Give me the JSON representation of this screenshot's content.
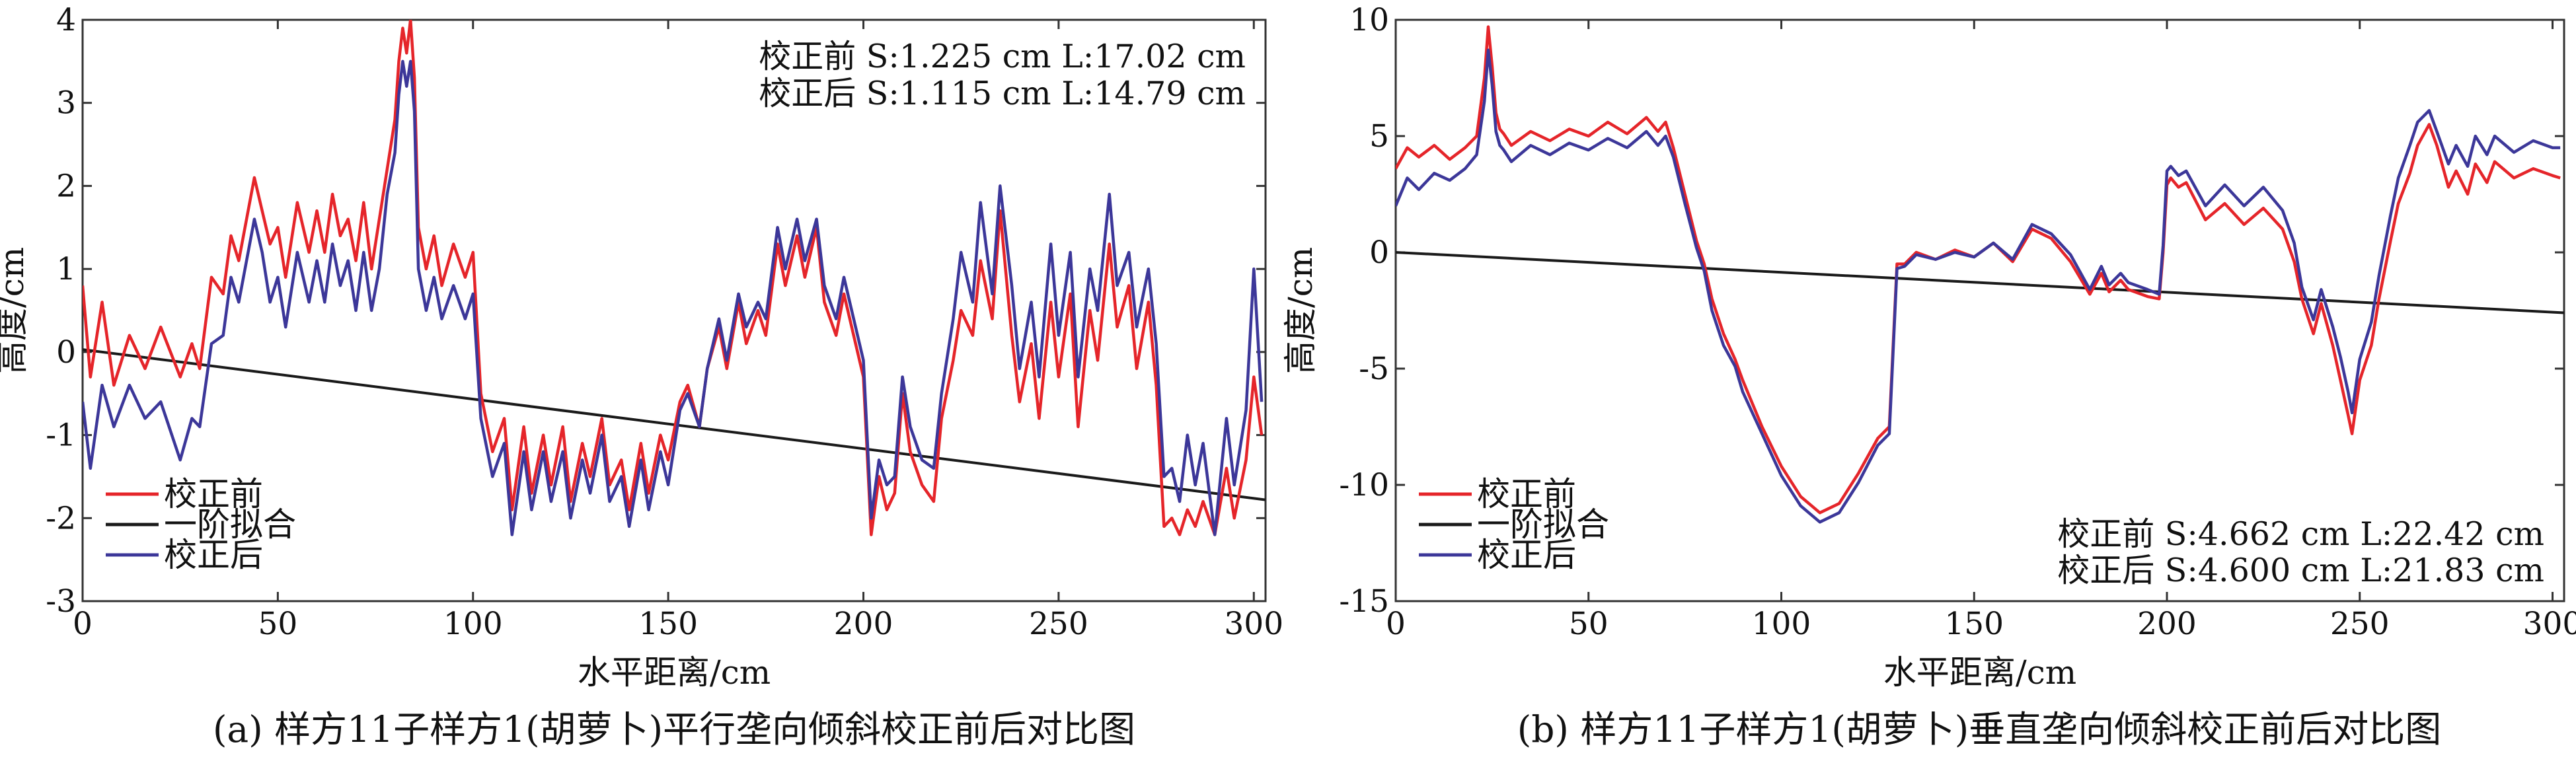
{
  "figure": {
    "colors": {
      "before": "#e5252a",
      "after": "#3c3799",
      "fit": "#1a1a1a",
      "axis": "#333333"
    }
  },
  "chart_data": [
    {
      "type": "line",
      "caption": "(a) 样方11子样方1(胡萝卜)平行垄向倾斜校正前后对比图",
      "xlabel": "水平距离/cm",
      "ylabel": "高度/cm",
      "xlim": [
        0,
        303
      ],
      "ylim": [
        -3,
        4
      ],
      "xticks": [
        0,
        50,
        100,
        150,
        200,
        250,
        300
      ],
      "yticks": [
        -3,
        -2,
        -1,
        0,
        1,
        2,
        3,
        4
      ],
      "legend": {
        "position": "bottom-left",
        "entries": [
          "校正前",
          "一阶拟合",
          "校正后"
        ]
      },
      "annotations": {
        "position": "top-right",
        "line1": "校正前  S:1.225 cm  L:17.02 cm",
        "line2": "校正后  S:1.115 cm  L:14.79 cm"
      },
      "series": [
        {
          "name": "校正前",
          "x": [
            0,
            2,
            5,
            8,
            12,
            16,
            20,
            25,
            28,
            30,
            33,
            36,
            38,
            40,
            42,
            44,
            46,
            48,
            50,
            52,
            55,
            58,
            60,
            62,
            64,
            66,
            68,
            70,
            72,
            74,
            76,
            78,
            80,
            81,
            82,
            83,
            84,
            85,
            86,
            88,
            90,
            92,
            95,
            98,
            100,
            102,
            105,
            108,
            110,
            113,
            115,
            118,
            120,
            123,
            125,
            128,
            130,
            133,
            135,
            138,
            140,
            143,
            145,
            148,
            150,
            153,
            155,
            158,
            160,
            163,
            165,
            168,
            170,
            173,
            175,
            178,
            180,
            183,
            185,
            188,
            190,
            193,
            195,
            198,
            200,
            202,
            204,
            206,
            208,
            210,
            212,
            215,
            218,
            220,
            223,
            225,
            228,
            230,
            233,
            235,
            238,
            240,
            243,
            245,
            248,
            250,
            253,
            255,
            258,
            260,
            263,
            265,
            268,
            270,
            273,
            275,
            277,
            279,
            281,
            283,
            285,
            287,
            290,
            293,
            295,
            298,
            300,
            302
          ],
          "values": [
            0.8,
            -0.3,
            0.6,
            -0.4,
            0.2,
            -0.2,
            0.3,
            -0.3,
            0.1,
            -0.2,
            0.9,
            0.7,
            1.4,
            1.1,
            1.6,
            2.1,
            1.7,
            1.3,
            1.5,
            0.9,
            1.8,
            1.2,
            1.7,
            1.2,
            1.9,
            1.4,
            1.6,
            1.1,
            1.8,
            1.0,
            1.6,
            2.2,
            2.8,
            3.5,
            3.9,
            3.6,
            4.0,
            3.3,
            1.5,
            1.0,
            1.4,
            0.8,
            1.3,
            0.9,
            1.2,
            -0.5,
            -1.2,
            -0.8,
            -1.9,
            -0.9,
            -1.7,
            -1.0,
            -1.6,
            -0.9,
            -1.8,
            -1.1,
            -1.5,
            -0.8,
            -1.6,
            -1.3,
            -1.9,
            -1.1,
            -1.7,
            -1.0,
            -1.3,
            -0.6,
            -0.4,
            -0.9,
            -0.2,
            0.3,
            -0.2,
            0.6,
            0.1,
            0.5,
            0.2,
            1.3,
            0.8,
            1.4,
            0.9,
            1.5,
            0.6,
            0.2,
            0.7,
            0.1,
            -0.3,
            -2.2,
            -1.5,
            -1.9,
            -1.7,
            -0.5,
            -1.2,
            -1.6,
            -1.8,
            -0.8,
            -0.1,
            0.5,
            0.2,
            1.1,
            0.4,
            1.7,
            0.2,
            -0.6,
            0.1,
            -0.8,
            0.6,
            -0.3,
            0.7,
            -0.9,
            0.5,
            -0.1,
            1.3,
            0.3,
            0.8,
            -0.2,
            0.6,
            -0.4,
            -2.1,
            -2.0,
            -2.2,
            -1.9,
            -2.1,
            -1.8,
            -2.2,
            -1.4,
            -2.0,
            -1.3,
            -0.3,
            -1.0
          ]
        },
        {
          "name": "一阶拟合",
          "x": [
            0,
            303
          ],
          "values": [
            0.03,
            -1.78
          ]
        },
        {
          "name": "校正后",
          "x": [
            0,
            2,
            5,
            8,
            12,
            16,
            20,
            25,
            28,
            30,
            33,
            36,
            38,
            40,
            42,
            44,
            46,
            48,
            50,
            52,
            55,
            58,
            60,
            62,
            64,
            66,
            68,
            70,
            72,
            74,
            76,
            78,
            80,
            81,
            82,
            83,
            84,
            85,
            86,
            88,
            90,
            92,
            95,
            98,
            100,
            102,
            105,
            108,
            110,
            113,
            115,
            118,
            120,
            123,
            125,
            128,
            130,
            133,
            135,
            138,
            140,
            143,
            145,
            148,
            150,
            153,
            155,
            158,
            160,
            163,
            165,
            168,
            170,
            173,
            175,
            178,
            180,
            183,
            185,
            188,
            190,
            193,
            195,
            198,
            200,
            202,
            204,
            206,
            208,
            210,
            212,
            215,
            218,
            220,
            223,
            225,
            228,
            230,
            233,
            235,
            238,
            240,
            243,
            245,
            248,
            250,
            253,
            255,
            258,
            260,
            263,
            265,
            268,
            270,
            273,
            275,
            277,
            279,
            281,
            283,
            285,
            287,
            290,
            293,
            295,
            298,
            300,
            302
          ],
          "values": [
            -0.6,
            -1.4,
            -0.4,
            -0.9,
            -0.4,
            -0.8,
            -0.6,
            -1.3,
            -0.8,
            -0.9,
            0.1,
            0.2,
            0.9,
            0.6,
            1.1,
            1.6,
            1.2,
            0.6,
            0.9,
            0.3,
            1.2,
            0.6,
            1.1,
            0.6,
            1.3,
            0.8,
            1.1,
            0.5,
            1.2,
            0.5,
            1.0,
            1.9,
            2.4,
            3.1,
            3.5,
            3.2,
            3.5,
            2.9,
            1.0,
            0.5,
            0.9,
            0.4,
            0.8,
            0.4,
            0.7,
            -0.8,
            -1.5,
            -1.1,
            -2.2,
            -1.2,
            -1.9,
            -1.2,
            -1.8,
            -1.2,
            -2.0,
            -1.3,
            -1.7,
            -1.0,
            -1.8,
            -1.5,
            -2.1,
            -1.3,
            -1.9,
            -1.2,
            -1.6,
            -0.7,
            -0.5,
            -0.9,
            -0.2,
            0.4,
            -0.1,
            0.7,
            0.3,
            0.6,
            0.4,
            1.5,
            1.0,
            1.6,
            1.1,
            1.6,
            0.8,
            0.4,
            0.9,
            0.3,
            -0.1,
            -2.0,
            -1.3,
            -1.6,
            -1.5,
            -0.3,
            -0.9,
            -1.3,
            -1.4,
            -0.5,
            0.4,
            1.2,
            0.6,
            1.8,
            0.7,
            2.0,
            0.8,
            -0.2,
            0.6,
            -0.3,
            1.3,
            0.2,
            1.2,
            -0.3,
            1.0,
            0.5,
            1.9,
            0.8,
            1.2,
            0.3,
            1.0,
            0.1,
            -1.5,
            -1.4,
            -1.8,
            -1.0,
            -1.6,
            -1.1,
            -2.2,
            -0.8,
            -1.6,
            -0.7,
            1.0,
            -0.6
          ]
        }
      ]
    },
    {
      "type": "line",
      "caption": "(b) 样方11子样方1(胡萝卜)垂直垄向倾斜校正前后对比图",
      "xlabel": "水平距离/cm",
      "ylabel": "高度/cm",
      "xlim": [
        0,
        303
      ],
      "ylim": [
        -15,
        10
      ],
      "xticks": [
        0,
        50,
        100,
        150,
        200,
        250,
        300
      ],
      "yticks": [
        -15,
        -10,
        -5,
        0,
        5,
        10
      ],
      "legend": {
        "position": "bottom-left",
        "entries": [
          "校正前",
          "一阶拟合",
          "校正后"
        ]
      },
      "annotations": {
        "position": "bottom-right",
        "line1": "校正前  S:4.662 cm  L:22.42 cm",
        "line2": "校正后  S:4.600 cm  L:21.83 cm"
      },
      "series": [
        {
          "name": "校正前",
          "x": [
            0,
            3,
            6,
            10,
            14,
            18,
            21,
            23,
            24,
            25,
            26,
            27,
            28,
            30,
            35,
            40,
            45,
            50,
            55,
            60,
            65,
            68,
            70,
            72,
            75,
            78,
            80,
            82,
            85,
            88,
            90,
            95,
            100,
            105,
            110,
            115,
            120,
            125,
            128,
            130,
            132,
            135,
            140,
            145,
            150,
            155,
            160,
            165,
            170,
            175,
            180,
            183,
            185,
            188,
            190,
            195,
            198,
            199,
            200,
            201,
            203,
            205,
            210,
            215,
            220,
            225,
            230,
            233,
            235,
            238,
            240,
            243,
            245,
            247,
            248,
            250,
            253,
            255,
            258,
            260,
            263,
            265,
            268,
            270,
            273,
            275,
            278,
            280,
            283,
            285,
            290,
            295,
            300,
            302
          ],
          "values": [
            3.6,
            4.5,
            4.1,
            4.6,
            4.0,
            4.5,
            5.0,
            7.5,
            9.7,
            8.0,
            6.0,
            5.3,
            5.1,
            4.6,
            5.2,
            4.8,
            5.3,
            5.0,
            5.6,
            5.1,
            5.8,
            5.2,
            5.6,
            4.5,
            2.5,
            0.5,
            -0.5,
            -2.0,
            -3.5,
            -4.6,
            -5.5,
            -7.5,
            -9.2,
            -10.5,
            -11.2,
            -10.8,
            -9.5,
            -8.0,
            -7.5,
            -0.5,
            -0.5,
            0.0,
            -0.3,
            0.1,
            -0.2,
            0.4,
            -0.4,
            1.0,
            0.6,
            -0.4,
            -1.8,
            -0.9,
            -1.7,
            -1.2,
            -1.6,
            -1.9,
            -2.0,
            0.0,
            2.9,
            3.2,
            2.8,
            3.0,
            1.4,
            2.1,
            1.2,
            1.9,
            1.0,
            -0.4,
            -2.0,
            -3.5,
            -2.2,
            -4.0,
            -5.5,
            -7.0,
            -7.8,
            -5.5,
            -4.0,
            -2.0,
            0.5,
            2.1,
            3.4,
            4.6,
            5.5,
            4.6,
            2.8,
            3.5,
            2.5,
            3.8,
            3.0,
            3.9,
            3.2,
            3.6,
            3.3,
            3.2
          ]
        },
        {
          "name": "一阶拟合",
          "x": [
            0,
            303
          ],
          "values": [
            0.0,
            -2.6
          ]
        },
        {
          "name": "校正后",
          "x": [
            0,
            3,
            6,
            10,
            14,
            18,
            21,
            23,
            24,
            25,
            26,
            27,
            28,
            30,
            35,
            40,
            45,
            50,
            55,
            60,
            65,
            68,
            70,
            72,
            75,
            78,
            80,
            82,
            85,
            88,
            90,
            95,
            100,
            105,
            110,
            115,
            120,
            125,
            128,
            130,
            132,
            135,
            140,
            145,
            150,
            155,
            160,
            165,
            170,
            175,
            180,
            183,
            185,
            188,
            190,
            195,
            198,
            199,
            200,
            201,
            203,
            205,
            210,
            215,
            220,
            225,
            230,
            233,
            235,
            238,
            240,
            243,
            245,
            247,
            248,
            250,
            253,
            255,
            258,
            260,
            263,
            265,
            268,
            270,
            273,
            275,
            278,
            280,
            283,
            285,
            290,
            295,
            300,
            302
          ],
          "values": [
            2.0,
            3.2,
            2.7,
            3.4,
            3.1,
            3.6,
            4.2,
            6.5,
            8.7,
            7.2,
            5.2,
            4.6,
            4.4,
            3.9,
            4.6,
            4.2,
            4.7,
            4.4,
            4.9,
            4.5,
            5.2,
            4.6,
            5.0,
            4.1,
            2.1,
            0.2,
            -0.8,
            -2.5,
            -4.0,
            -4.9,
            -6.0,
            -7.8,
            -9.6,
            -10.9,
            -11.6,
            -11.2,
            -9.9,
            -8.3,
            -7.8,
            -0.7,
            -0.6,
            -0.1,
            -0.3,
            0.0,
            -0.2,
            0.4,
            -0.3,
            1.2,
            0.8,
            -0.1,
            -1.6,
            -0.6,
            -1.4,
            -0.9,
            -1.3,
            -1.6,
            -1.8,
            0.3,
            3.5,
            3.7,
            3.3,
            3.5,
            2.0,
            2.9,
            2.0,
            2.8,
            1.8,
            0.4,
            -1.5,
            -2.9,
            -1.6,
            -3.2,
            -4.5,
            -6.0,
            -6.9,
            -4.6,
            -3.0,
            -1.0,
            1.6,
            3.2,
            4.6,
            5.6,
            6.1,
            5.2,
            3.8,
            4.6,
            3.7,
            5.0,
            4.2,
            5.0,
            4.3,
            4.8,
            4.5,
            4.5
          ]
        }
      ]
    }
  ]
}
